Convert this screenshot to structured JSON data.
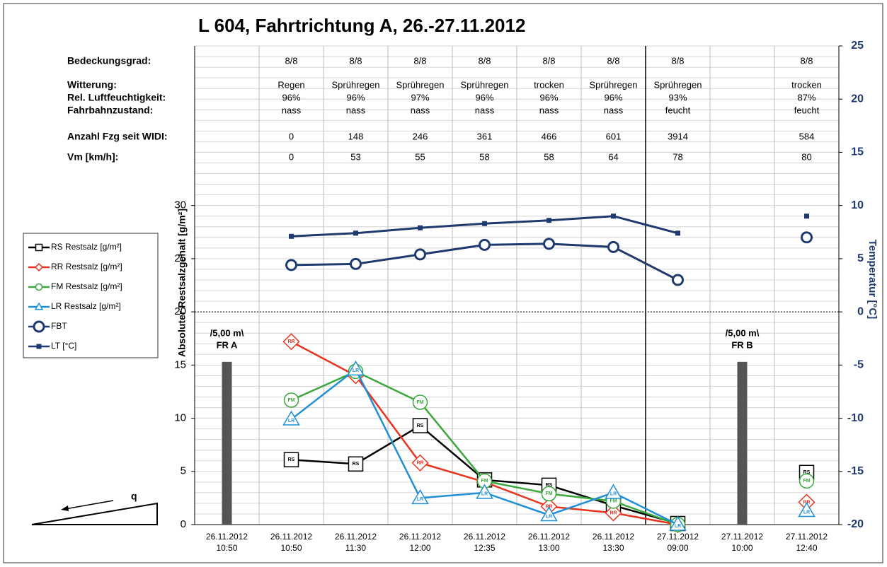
{
  "chart_data": {
    "type": "line",
    "title": "L 604, Fahrtrichtung A, 26.-27.11.2012",
    "categories": [
      [
        "26.11.2012",
        "10:50"
      ],
      [
        "26.11.2012",
        "10:50"
      ],
      [
        "26.11.2012",
        "11:30"
      ],
      [
        "26.11.2012",
        "12:00"
      ],
      [
        "26.11.2012",
        "12:35"
      ],
      [
        "26.11.2012",
        "13:00"
      ],
      [
        "26.11.2012",
        "13:30"
      ],
      [
        "27.11.2012",
        "09:00"
      ],
      [
        "27.11.2012",
        "10:00"
      ],
      [
        "27.11.2012",
        "12:40"
      ]
    ],
    "ylabel": "Absoluter Restsalzgehalt [g/m²]",
    "y2label": "Temperatur [°C]",
    "ylim": [
      0,
      45
    ],
    "yticks": [
      0,
      5,
      10,
      15,
      20,
      25,
      30
    ],
    "y2lim": [
      -20,
      25
    ],
    "y2ticks": [
      -20,
      -15,
      -10,
      -5,
      0,
      5,
      10,
      15,
      20,
      25
    ],
    "grid_step": 1,
    "dotted_line": {
      "axis": "y2",
      "value": 0
    },
    "divider_between": [
      6,
      7
    ],
    "series": [
      {
        "name": "RS Restsalz [g/m²]",
        "marker": "square",
        "marker_label": "RS",
        "color": "#000000",
        "values": [
          null,
          6.1,
          5.7,
          9.3,
          4.2,
          3.7,
          1.8,
          0.1,
          null,
          4.9
        ]
      },
      {
        "name": "RR Restsalz [g/m²]",
        "marker": "diamond",
        "marker_label": "RR",
        "color": "#e8331f",
        "values": [
          null,
          17.2,
          14.0,
          5.8,
          4.0,
          1.7,
          1.1,
          0.0,
          null,
          2.1
        ]
      },
      {
        "name": "FM Restsalz [g/m²]",
        "marker": "circle",
        "marker_label": "FM",
        "color": "#3aa83a",
        "values": [
          null,
          11.7,
          14.4,
          11.5,
          4.1,
          2.9,
          2.2,
          0.0,
          null,
          4.1
        ]
      },
      {
        "name": "LR Restsalz [g/m²]",
        "marker": "triangle",
        "marker_label": "LR",
        "color": "#1f8fd6",
        "values": [
          null,
          9.9,
          14.6,
          2.5,
          3.0,
          0.9,
          3.0,
          0.0,
          null,
          1.3
        ]
      },
      {
        "name": "FBT",
        "marker": "open-circle",
        "color": "#1f3a6e",
        "axis": "y2",
        "values": [
          null,
          4.4,
          4.5,
          5.4,
          6.3,
          6.4,
          6.1,
          3.0,
          null,
          7.0
        ]
      },
      {
        "name": "LT [°C]",
        "marker": "filled-square",
        "color": "#1f3a6e",
        "axis": "y2",
        "values": [
          null,
          7.1,
          7.4,
          7.9,
          8.3,
          8.6,
          9.0,
          7.4,
          null,
          9.0
        ]
      }
    ],
    "bars": {
      "color": "#555555",
      "values": [
        15.3,
        null,
        null,
        null,
        null,
        null,
        null,
        null,
        15.3,
        null
      ],
      "labels": [
        [
          "/5,00 m\\",
          "FR A"
        ],
        null,
        null,
        null,
        null,
        null,
        null,
        null,
        [
          "/5,00 m\\",
          "FR B"
        ],
        null
      ]
    },
    "table": {
      "rows": [
        {
          "label": "Bedeckungsgrad:",
          "values": [
            null,
            "8/8",
            "8/8",
            "8/8",
            "8/8",
            "8/8",
            "8/8",
            "8/8",
            null,
            "8/8"
          ]
        },
        {
          "label": "Witterung:",
          "values": [
            null,
            "Regen",
            "Sprühregen",
            "Sprühregen",
            "Sprühregen",
            "trocken",
            "Sprühregen",
            "Sprühregen",
            null,
            "trocken"
          ]
        },
        {
          "label": "Rel. Luftfeuchtigkeit:",
          "values": [
            null,
            "96%",
            "96%",
            "97%",
            "96%",
            "96%",
            "96%",
            "93%",
            null,
            "87%"
          ]
        },
        {
          "label": "Fahrbahnzustand:",
          "values": [
            null,
            "nass",
            "nass",
            "nass",
            "nass",
            "nass",
            "nass",
            "feucht",
            null,
            "feucht"
          ]
        },
        {
          "label": "Anzahl Fzg seit WIDI:",
          "values": [
            null,
            0,
            148,
            246,
            361,
            466,
            601,
            3914,
            null,
            584
          ]
        },
        {
          "label": "Vm [km/h]:",
          "values": [
            null,
            0,
            53,
            55,
            58,
            58,
            64,
            78,
            null,
            80
          ]
        }
      ]
    },
    "slope_label": "q"
  }
}
